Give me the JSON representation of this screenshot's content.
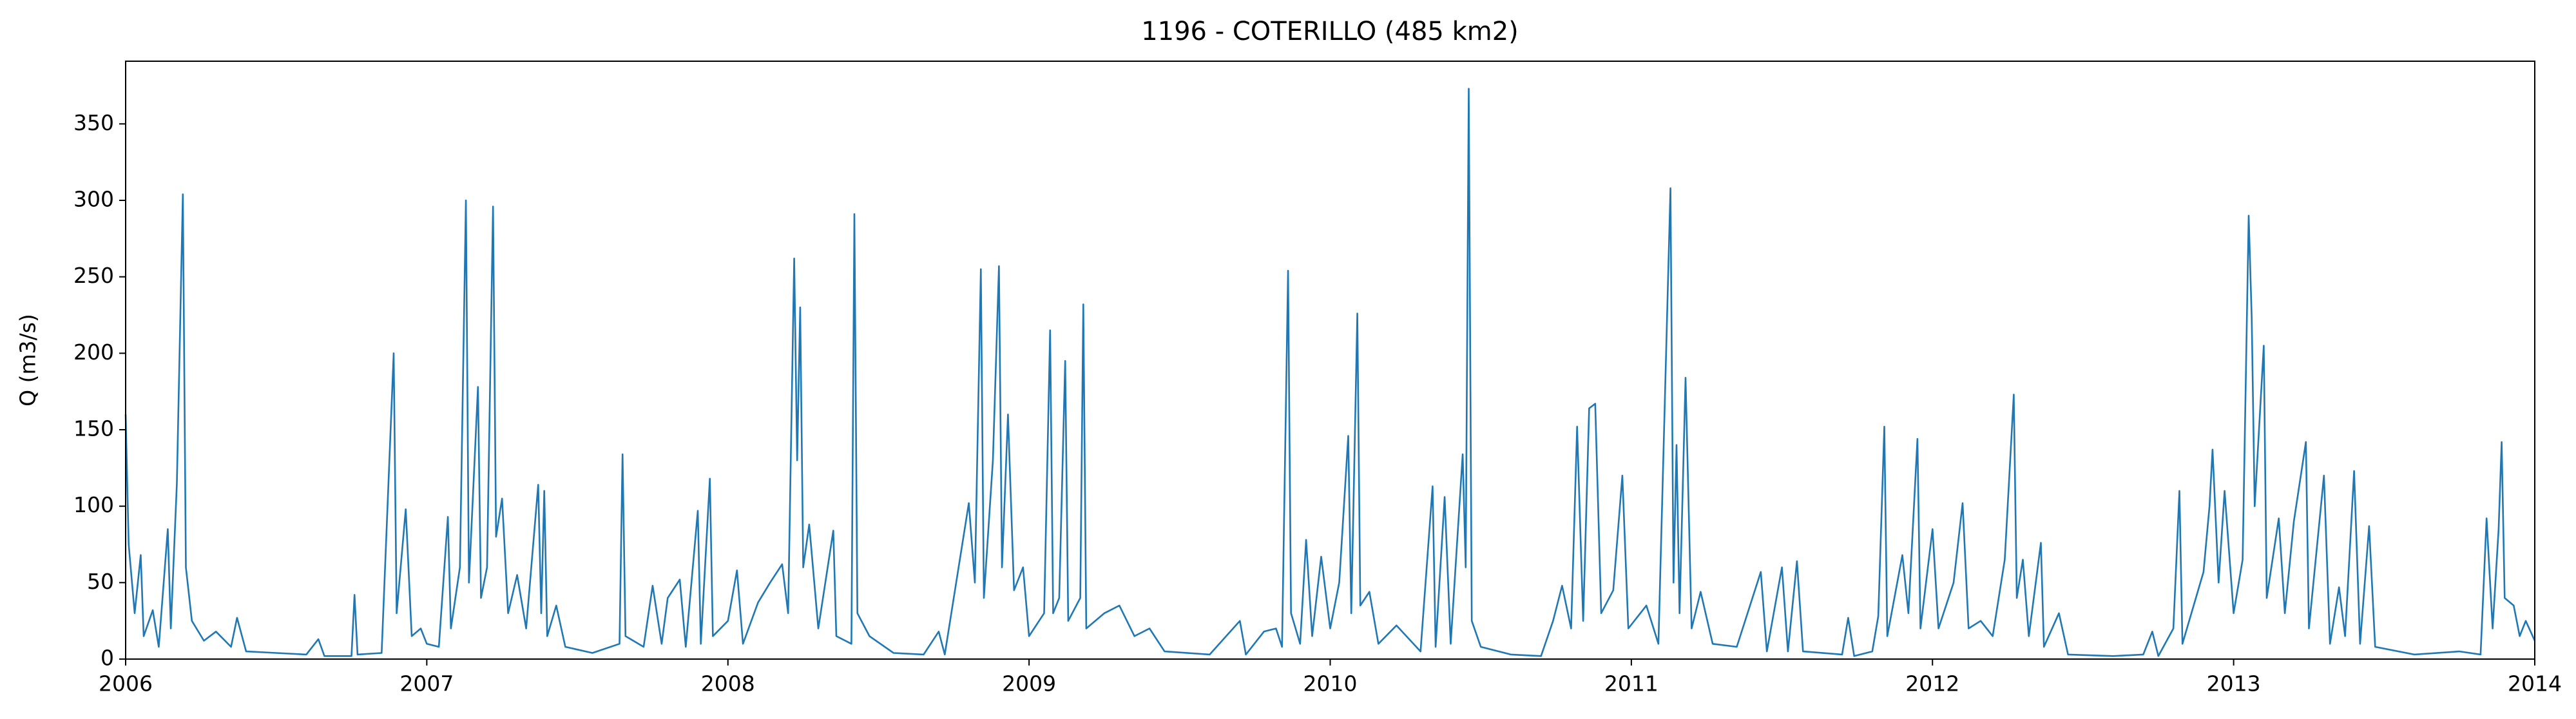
{
  "chart_data": {
    "type": "line",
    "title": "1196 - COTERILLO (485 km2)",
    "ylabel": "Q (m3/s)",
    "color": "#1f77b4",
    "xlim": [
      2006,
      2014
    ],
    "xticks": [
      2006,
      2007,
      2008,
      2009,
      2010,
      2011,
      2012,
      2013,
      2014
    ],
    "ylim": [
      0,
      391
    ],
    "yticks": [
      0,
      50,
      100,
      150,
      200,
      250,
      300,
      350
    ],
    "grid": false,
    "x": [
      2006.0,
      2006.01,
      2006.03,
      2006.05,
      2006.06,
      2006.09,
      2006.11,
      2006.14,
      2006.15,
      2006.17,
      2006.19,
      2006.2,
      2006.22,
      2006.26,
      2006.3,
      2006.35,
      2006.37,
      2006.4,
      2006.5,
      2006.6,
      2006.64,
      2006.66,
      2006.75,
      2006.76,
      2006.77,
      2006.85,
      2006.89,
      2006.9,
      2006.93,
      2006.95,
      2006.98,
      2007.0,
      2007.04,
      2007.07,
      2007.08,
      2007.11,
      2007.13,
      2007.14,
      2007.17,
      2007.18,
      2007.2,
      2007.22,
      2007.23,
      2007.25,
      2007.27,
      2007.3,
      2007.33,
      2007.37,
      2007.38,
      2007.39,
      2007.4,
      2007.43,
      2007.46,
      2007.55,
      2007.64,
      2007.65,
      2007.66,
      2007.72,
      2007.75,
      2007.78,
      2007.8,
      2007.84,
      2007.86,
      2007.9,
      2007.91,
      2007.94,
      2007.95,
      2008.0,
      2008.03,
      2008.05,
      2008.1,
      2008.14,
      2008.18,
      2008.2,
      2008.22,
      2008.23,
      2008.24,
      2008.25,
      2008.27,
      2008.3,
      2008.35,
      2008.36,
      2008.41,
      2008.42,
      2008.43,
      2008.47,
      2008.55,
      2008.65,
      2008.7,
      2008.72,
      2008.8,
      2008.82,
      2008.84,
      2008.85,
      2008.88,
      2008.9,
      2008.91,
      2008.93,
      2008.95,
      2008.98,
      2009.0,
      2009.05,
      2009.07,
      2009.08,
      2009.1,
      2009.12,
      2009.13,
      2009.17,
      2009.18,
      2009.19,
      2009.25,
      2009.3,
      2009.35,
      2009.4,
      2009.45,
      2009.6,
      2009.7,
      2009.72,
      2009.78,
      2009.82,
      2009.84,
      2009.86,
      2009.87,
      2009.9,
      2009.92,
      2009.94,
      2009.97,
      2010.0,
      2010.03,
      2010.06,
      2010.07,
      2010.09,
      2010.1,
      2010.13,
      2010.16,
      2010.22,
      2010.3,
      2010.34,
      2010.35,
      2010.38,
      2010.4,
      2010.44,
      2010.45,
      2010.46,
      2010.47,
      2010.5,
      2010.6,
      2010.7,
      2010.74,
      2010.77,
      2010.8,
      2010.82,
      2010.84,
      2010.86,
      2010.88,
      2010.9,
      2010.94,
      2010.97,
      2010.99,
      2011.05,
      2011.09,
      2011.13,
      2011.14,
      2011.15,
      2011.16,
      2011.18,
      2011.2,
      2011.23,
      2011.27,
      2011.35,
      2011.43,
      2011.45,
      2011.5,
      2011.52,
      2011.55,
      2011.57,
      2011.7,
      2011.72,
      2011.74,
      2011.8,
      2011.82,
      2011.84,
      2011.85,
      2011.9,
      2011.92,
      2011.95,
      2011.96,
      2012.0,
      2012.02,
      2012.07,
      2012.1,
      2012.12,
      2012.16,
      2012.2,
      2012.24,
      2012.27,
      2012.28,
      2012.3,
      2012.32,
      2012.36,
      2012.37,
      2012.42,
      2012.45,
      2012.6,
      2012.7,
      2012.73,
      2012.75,
      2012.8,
      2012.82,
      2012.83,
      2012.9,
      2012.92,
      2012.93,
      2012.95,
      2012.97,
      2013.0,
      2013.03,
      2013.05,
      2013.06,
      2013.07,
      2013.1,
      2013.11,
      2013.15,
      2013.17,
      2013.2,
      2013.24,
      2013.25,
      2013.3,
      2013.32,
      2013.35,
      2013.37,
      2013.4,
      2013.42,
      2013.45,
      2013.47,
      2013.6,
      2013.75,
      2013.82,
      2013.84,
      2013.86,
      2013.88,
      2013.89,
      2013.9,
      2013.93,
      2013.95,
      2013.97,
      2014.0
    ],
    "values": [
      160,
      75,
      30,
      68,
      15,
      32,
      8,
      85,
      20,
      115,
      304,
      60,
      25,
      12,
      18,
      8,
      27,
      5,
      4,
      3,
      13,
      2,
      2,
      42,
      3,
      4,
      200,
      30,
      98,
      15,
      20,
      10,
      8,
      93,
      20,
      60,
      300,
      50,
      178,
      40,
      60,
      296,
      80,
      105,
      30,
      55,
      20,
      114,
      30,
      110,
      15,
      35,
      8,
      4,
      10,
      134,
      15,
      8,
      48,
      10,
      40,
      52,
      8,
      97,
      10,
      118,
      15,
      25,
      58,
      10,
      37,
      50,
      62,
      30,
      262,
      130,
      230,
      60,
      88,
      20,
      84,
      15,
      10,
      291,
      30,
      15,
      4,
      3,
      18,
      3,
      102,
      50,
      255,
      40,
      130,
      257,
      60,
      160,
      45,
      60,
      15,
      30,
      215,
      30,
      40,
      195,
      25,
      40,
      232,
      20,
      30,
      35,
      15,
      20,
      5,
      3,
      25,
      3,
      18,
      20,
      8,
      254,
      30,
      10,
      78,
      15,
      67,
      20,
      50,
      146,
      30,
      226,
      35,
      44,
      10,
      22,
      5,
      113,
      8,
      106,
      10,
      134,
      60,
      373,
      25,
      8,
      3,
      2,
      25,
      48,
      20,
      152,
      25,
      164,
      167,
      30,
      45,
      120,
      20,
      35,
      10,
      308,
      50,
      140,
      30,
      184,
      20,
      44,
      10,
      8,
      57,
      5,
      60,
      5,
      64,
      5,
      3,
      27,
      2,
      5,
      28,
      152,
      15,
      68,
      30,
      144,
      20,
      85,
      20,
      50,
      102,
      20,
      25,
      15,
      65,
      173,
      40,
      65,
      15,
      76,
      8,
      30,
      3,
      2,
      3,
      18,
      2,
      20,
      110,
      10,
      57,
      100,
      137,
      50,
      110,
      30,
      65,
      290,
      223,
      100,
      205,
      40,
      92,
      30,
      90,
      142,
      20,
      120,
      10,
      47,
      15,
      123,
      10,
      87,
      8,
      3,
      5,
      3,
      92,
      20,
      85,
      142,
      40,
      35,
      15,
      25,
      12
    ]
  }
}
